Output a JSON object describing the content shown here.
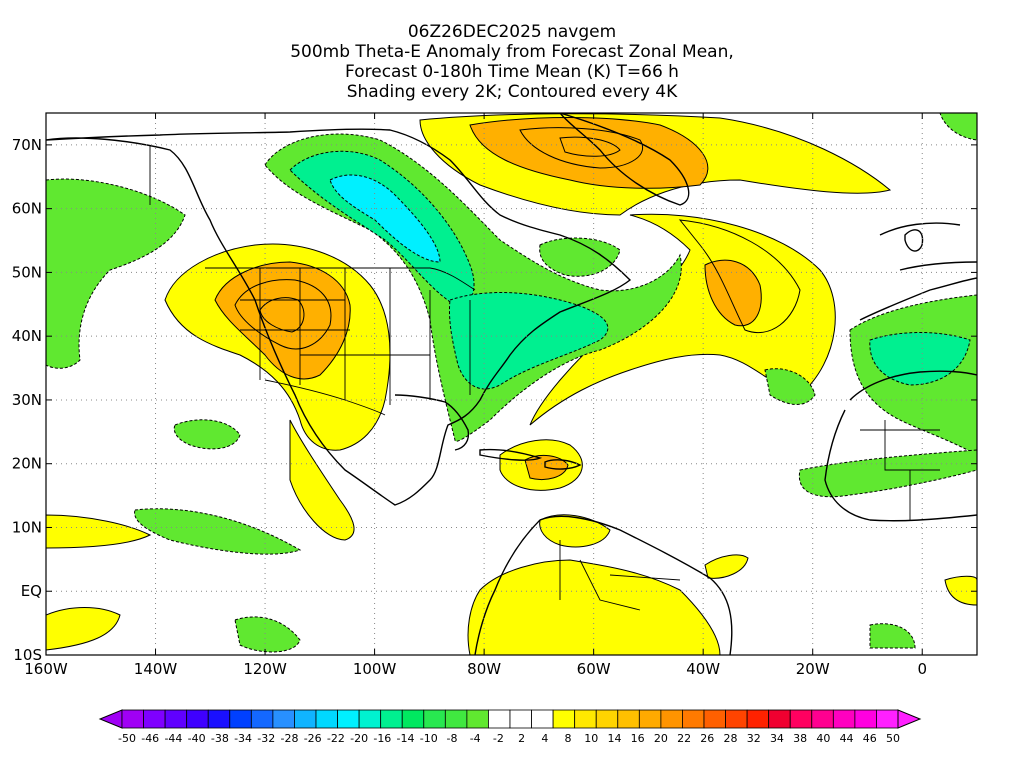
{
  "title": {
    "lines": [
      "06Z26DEC2025 navgem",
      "500mb Theta-E Anomaly from Forecast Zonal Mean,",
      "Forecast 0-180h Time Mean (K) T=66 h",
      "Shading every 2K; Contoured every 4K"
    ]
  },
  "map": {
    "lon_labels": [
      "160W",
      "140W",
      "120W",
      "100W",
      "80W",
      "60W",
      "40W",
      "20W",
      "0"
    ],
    "lat_labels": [
      "70N",
      "60N",
      "50N",
      "40N",
      "30N",
      "20N",
      "10N",
      "EQ",
      "10S"
    ],
    "lon_range": [
      -160,
      10
    ],
    "lat_range": [
      -10,
      75
    ],
    "grid": true
  },
  "colorbar": {
    "labels": [
      "-50",
      "-46",
      "-44",
      "-40",
      "-38",
      "-34",
      "-32",
      "-28",
      "-26",
      "-22",
      "-20",
      "-16",
      "-14",
      "-10",
      "-8",
      "-4",
      "-2",
      "2",
      "4",
      "8",
      "10",
      "14",
      "16",
      "20",
      "22",
      "26",
      "28",
      "32",
      "34",
      "38",
      "40",
      "44",
      "46",
      "50"
    ],
    "colors": [
      "#a000f5",
      "#7f00ff",
      "#6000ff",
      "#3f00ff",
      "#1a10ff",
      "#0040ff",
      "#1468ff",
      "#2890ff",
      "#10b4ff",
      "#00d8ff",
      "#00f0ff",
      "#00f2d0",
      "#00f090",
      "#00e860",
      "#28e850",
      "#40e840",
      "#60e830",
      "#ffffff",
      "#ffffff",
      "#ffffff",
      "#ffff00",
      "#ffe800",
      "#ffd400",
      "#ffc000",
      "#ffaa00",
      "#ff9400",
      "#ff7a00",
      "#ff6000",
      "#ff4400",
      "#ff2200",
      "#f00030",
      "#ff0060",
      "#ff0090",
      "#ff00c0",
      "#ff00e0",
      "#ff20ff"
    ]
  }
}
